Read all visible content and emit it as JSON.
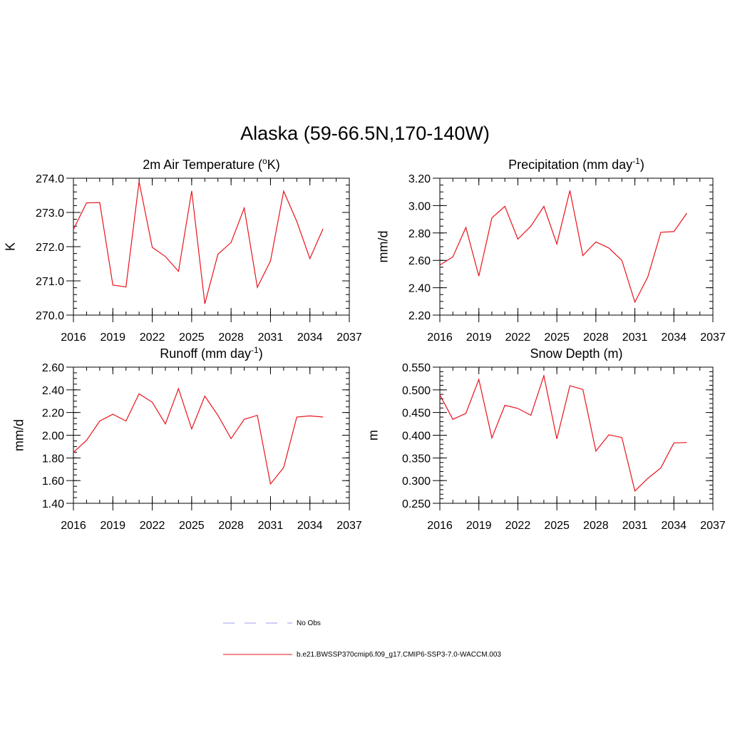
{
  "title": "Alaska (59-66.5N,170-140W)",
  "colors": {
    "model_line": "#e8141c",
    "obs_line": "#9e9ef0",
    "axis": "#000000"
  },
  "legend": [
    {
      "label": "No Obs",
      "style": "dashed",
      "color": "#9e9ef0"
    },
    {
      "label": "b.e21.BWSSP370cmip6.f09_g17.CMIP6-SSP3-7.0-WACCM.003",
      "style": "solid",
      "color": "#e8141c"
    }
  ],
  "chart_data": [
    {
      "type": "line",
      "title": "2m Air Temperature (",
      "title_sup": "o",
      "title_after": "K)",
      "ylabel": "K",
      "xlim": [
        2016,
        2037
      ],
      "ylim": [
        270.0,
        274.0
      ],
      "xticks": [
        2016,
        2019,
        2022,
        2025,
        2028,
        2031,
        2034,
        2037
      ],
      "xtick_labels": [
        "2016",
        "2019",
        "2022",
        "2025",
        "2028",
        "2031",
        "2034",
        "2037"
      ],
      "yticks": [
        270.0,
        271.0,
        272.0,
        273.0,
        274.0
      ],
      "ytick_labels": [
        "270.0",
        "271.0",
        "272.0",
        "273.0",
        "274.0"
      ],
      "yminor_step": 0.2,
      "x": [
        2016,
        2017,
        2018,
        2019,
        2020,
        2021,
        2022,
        2023,
        2024,
        2025,
        2026,
        2027,
        2028,
        2029,
        2030,
        2031,
        2032,
        2033,
        2034,
        2035
      ],
      "series": [
        {
          "name": "b.e21.BWSSP370cmip6.f09_g17.CMIP6-SSP3-7.0-WACCM.003",
          "values": [
            272.5,
            273.28,
            273.29,
            270.88,
            270.82,
            273.9,
            271.98,
            271.71,
            271.28,
            273.63,
            270.33,
            271.78,
            272.12,
            273.13,
            270.81,
            271.58,
            273.62,
            272.74,
            271.65,
            272.52
          ]
        }
      ]
    },
    {
      "type": "line",
      "title": "Precipitation (mm day",
      "title_sup": "-1",
      "title_after": ")",
      "ylabel": "mm/d",
      "xlim": [
        2016,
        2037
      ],
      "ylim": [
        2.2,
        3.2
      ],
      "xticks": [
        2016,
        2019,
        2022,
        2025,
        2028,
        2031,
        2034,
        2037
      ],
      "xtick_labels": [
        "2016",
        "2019",
        "2022",
        "2025",
        "2028",
        "2031",
        "2034",
        "2037"
      ],
      "yticks": [
        2.2,
        2.4,
        2.6,
        2.8,
        3.0,
        3.2
      ],
      "ytick_labels": [
        "2.20",
        "2.40",
        "2.60",
        "2.80",
        "3.00",
        "3.20"
      ],
      "yminor_step": 0.05,
      "x": [
        2016,
        2017,
        2018,
        2019,
        2020,
        2021,
        2022,
        2023,
        2024,
        2025,
        2026,
        2027,
        2028,
        2029,
        2030,
        2031,
        2032,
        2033,
        2034,
        2035
      ],
      "series": [
        {
          "name": "b.e21.BWSSP370cmip6.f09_g17.CMIP6-SSP3-7.0-WACCM.003",
          "values": [
            2.565,
            2.625,
            2.84,
            2.485,
            2.91,
            2.995,
            2.755,
            2.85,
            2.995,
            2.72,
            3.11,
            2.635,
            2.735,
            2.69,
            2.6,
            2.295,
            2.48,
            2.805,
            2.81,
            2.945
          ]
        }
      ]
    },
    {
      "type": "line",
      "title": "Runoff (mm day",
      "title_sup": "-1",
      "title_after": ")",
      "ylabel": "mm/d",
      "xlim": [
        2016,
        2037
      ],
      "ylim": [
        1.4,
        2.6
      ],
      "xticks": [
        2016,
        2019,
        2022,
        2025,
        2028,
        2031,
        2034,
        2037
      ],
      "xtick_labels": [
        "2016",
        "2019",
        "2022",
        "2025",
        "2028",
        "2031",
        "2034",
        "2037"
      ],
      "yticks": [
        1.4,
        1.6,
        1.8,
        2.0,
        2.2,
        2.4,
        2.6
      ],
      "ytick_labels": [
        "1.40",
        "1.60",
        "1.80",
        "2.00",
        "2.20",
        "2.40",
        "2.60"
      ],
      "yminor_step": 0.05,
      "x": [
        2016,
        2017,
        2018,
        2019,
        2020,
        2021,
        2022,
        2023,
        2024,
        2025,
        2026,
        2027,
        2028,
        2029,
        2030,
        2031,
        2032,
        2033,
        2034,
        2035
      ],
      "series": [
        {
          "name": "b.e21.BWSSP370cmip6.f09_g17.CMIP6-SSP3-7.0-WACCM.003",
          "values": [
            1.85,
            1.955,
            2.125,
            2.185,
            2.125,
            2.365,
            2.29,
            2.1,
            2.41,
            2.055,
            2.345,
            2.175,
            1.97,
            2.14,
            2.175,
            1.57,
            1.715,
            2.16,
            2.17,
            2.16
          ]
        }
      ]
    },
    {
      "type": "line",
      "title": "Snow Depth (m)",
      "title_sup": "",
      "title_after": "",
      "ylabel": "m",
      "xlim": [
        2016,
        2037
      ],
      "ylim": [
        0.25,
        0.55
      ],
      "xticks": [
        2016,
        2019,
        2022,
        2025,
        2028,
        2031,
        2034,
        2037
      ],
      "xtick_labels": [
        "2016",
        "2019",
        "2022",
        "2025",
        "2028",
        "2031",
        "2034",
        "2037"
      ],
      "yticks": [
        0.25,
        0.3,
        0.35,
        0.4,
        0.45,
        0.5,
        0.55
      ],
      "ytick_labels": [
        "0.250",
        "0.300",
        "0.350",
        "0.400",
        "0.450",
        "0.500",
        "0.550"
      ],
      "yminor_step": 0.01,
      "x": [
        2016,
        2017,
        2018,
        2019,
        2020,
        2021,
        2022,
        2023,
        2024,
        2025,
        2026,
        2027,
        2028,
        2029,
        2030,
        2031,
        2032,
        2033,
        2034,
        2035
      ],
      "series": [
        {
          "name": "b.e21.BWSSP370cmip6.f09_g17.CMIP6-SSP3-7.0-WACCM.003",
          "values": [
            0.489,
            0.435,
            0.448,
            0.523,
            0.394,
            0.466,
            0.459,
            0.444,
            0.531,
            0.392,
            0.509,
            0.501,
            0.365,
            0.401,
            0.395,
            0.277,
            0.305,
            0.328,
            0.383,
            0.384
          ]
        }
      ]
    }
  ]
}
